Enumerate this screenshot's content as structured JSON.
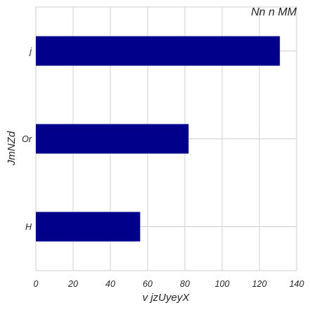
{
  "chart_data": {
    "type": "bar",
    "orientation": "horizontal",
    "title": "Nn n MM",
    "xlabel": "v   jzUyeyX",
    "ylabel": "JmNZd",
    "categories": [
      "j",
      "Or",
      "H"
    ],
    "values": [
      131,
      82,
      56
    ],
    "xlim": [
      0,
      140
    ],
    "xticks": [
      0,
      20,
      40,
      60,
      80,
      100,
      120,
      140
    ],
    "grid": true,
    "legend": "none",
    "bar_color": "#00008b"
  }
}
